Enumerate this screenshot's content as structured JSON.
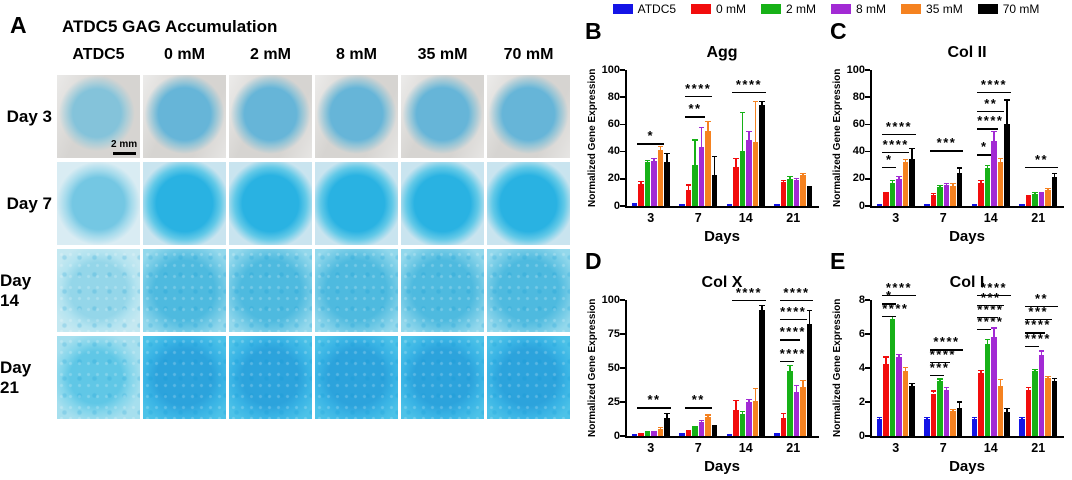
{
  "panel_a": {
    "letter": "A",
    "title": "ATDC5 GAG Accumulation",
    "columns": [
      "ATDC5",
      "0 mM",
      "2 mM",
      "8 mM",
      "35 mM",
      "70 mM"
    ],
    "rows": [
      "Day 3",
      "Day 7",
      "Day 14",
      "Day 21"
    ],
    "scale_bar": "2 mm",
    "stain_color": "#29b2e2"
  },
  "legend": {
    "items": [
      {
        "label": "ATDC5",
        "color": "#1414e6"
      },
      {
        "label": "0 mM",
        "color": "#f20d0d"
      },
      {
        "label": "2 mM",
        "color": "#17b117"
      },
      {
        "label": "8 mM",
        "color": "#a22ad4"
      },
      {
        "label": "35 mM",
        "color": "#f58220"
      },
      {
        "label": "70 mM",
        "color": "#000000"
      }
    ]
  },
  "chart_data": [
    {
      "panel": "B",
      "type": "bar",
      "title": "Agg",
      "categories": [
        "3",
        "7",
        "14",
        "21"
      ],
      "xlabel": "Days",
      "ylabel": "Normalized Gene Expression",
      "ylim": [
        0,
        100
      ],
      "yticks": [
        0,
        20,
        40,
        60,
        80,
        100
      ],
      "series": [
        {
          "name": "ATDC5",
          "color": "#1414e6",
          "values": [
            1.5,
            1,
            1,
            0.8
          ],
          "errors": [
            0.4,
            0.2,
            0.2,
            0.2
          ]
        },
        {
          "name": "0 mM",
          "color": "#f20d0d",
          "values": [
            16,
            11.5,
            29,
            17.5
          ],
          "errors": [
            2,
            4,
            6,
            1
          ]
        },
        {
          "name": "2 mM",
          "color": "#17b117",
          "values": [
            32.5,
            30.5,
            40.5,
            20
          ],
          "errors": [
            1,
            18,
            28,
            1.5
          ]
        },
        {
          "name": "8 mM",
          "color": "#a22ad4",
          "values": [
            33,
            43.5,
            48.5,
            19
          ],
          "errors": [
            2,
            14.5,
            6,
            1
          ]
        },
        {
          "name": "35 mM",
          "color": "#f58220",
          "values": [
            41,
            55,
            47,
            23
          ],
          "errors": [
            3,
            7,
            30,
            1
          ]
        },
        {
          "name": "70 mM",
          "color": "#000000",
          "values": [
            32,
            23,
            74,
            13
          ],
          "errors": [
            6.5,
            13.5,
            3,
            1
          ]
        }
      ],
      "annotations": [
        {
          "group": 0,
          "stars": "*",
          "x1": 1,
          "x2": 4,
          "y": 46
        },
        {
          "group": 1,
          "stars": "**",
          "x1": 1,
          "x2": 3,
          "y": 66
        },
        {
          "group": 1,
          "stars": "****",
          "x1": 1,
          "x2": 4,
          "y": 81
        },
        {
          "group": 2,
          "stars": "****",
          "x1": 1,
          "x2": 5,
          "y": 84
        }
      ]
    },
    {
      "panel": "C",
      "type": "bar",
      "title": "Col II",
      "categories": [
        "3",
        "7",
        "14",
        "21"
      ],
      "xlabel": "Days",
      "ylabel": "Normalized Gene Expression",
      "ylim": [
        0,
        100
      ],
      "yticks": [
        0,
        20,
        40,
        60,
        80,
        100
      ],
      "series": [
        {
          "name": "ATDC5",
          "color": "#1414e6",
          "values": [
            1,
            1,
            1,
            1
          ],
          "errors": [
            0.2,
            0.2,
            0.2,
            0.2
          ]
        },
        {
          "name": "0 mM",
          "color": "#f20d0d",
          "values": [
            8.5,
            8,
            17,
            7
          ],
          "errors": [
            1,
            1,
            1.5,
            1
          ]
        },
        {
          "name": "2 mM",
          "color": "#17b117",
          "values": [
            17,
            14,
            28,
            9
          ],
          "errors": [
            1.5,
            1,
            2,
            1
          ]
        },
        {
          "name": "8 mM",
          "color": "#a22ad4",
          "values": [
            20,
            15.5,
            48,
            8.5
          ],
          "errors": [
            1.5,
            1,
            7,
            1
          ]
        },
        {
          "name": "35 mM",
          "color": "#f58220",
          "values": [
            32,
            15,
            32,
            12
          ],
          "errors": [
            2,
            1.5,
            3,
            1
          ]
        },
        {
          "name": "70 mM",
          "color": "#000000",
          "values": [
            34.5,
            24,
            60,
            21
          ],
          "errors": [
            8,
            4,
            18,
            3
          ]
        }
      ],
      "annotations": [
        {
          "group": 0,
          "stars": "*",
          "x1": 1,
          "x2": 2,
          "y": 29
        },
        {
          "group": 0,
          "stars": "****",
          "x1": 1,
          "x2": 4,
          "y": 40
        },
        {
          "group": 0,
          "stars": "****",
          "x1": 1,
          "x2": 5,
          "y": 53
        },
        {
          "group": 1,
          "stars": "***",
          "x1": 1,
          "x2": 5,
          "y": 41
        },
        {
          "group": 2,
          "stars": "*",
          "x1": 1,
          "x2": 2,
          "y": 38
        },
        {
          "group": 2,
          "stars": "****",
          "x1": 1,
          "x2": 3,
          "y": 57
        },
        {
          "group": 2,
          "stars": "**",
          "x1": 1,
          "x2": 4,
          "y": 70
        },
        {
          "group": 2,
          "stars": "****",
          "x1": 1,
          "x2": 5,
          "y": 84
        },
        {
          "group": 3,
          "stars": "**",
          "x1": 1,
          "x2": 5,
          "y": 29
        }
      ]
    },
    {
      "panel": "D",
      "type": "bar",
      "title": "Col X",
      "categories": [
        "3",
        "7",
        "14",
        "21"
      ],
      "xlabel": "Days",
      "ylabel": "Normalized Gene Expression",
      "ylim": [
        0,
        100
      ],
      "yticks": [
        0,
        25,
        50,
        75,
        100
      ],
      "series": [
        {
          "name": "ATDC5",
          "color": "#1414e6",
          "values": [
            1,
            1.5,
            1,
            1.5
          ],
          "errors": [
            0.2,
            0.3,
            0.2,
            0.3
          ]
        },
        {
          "name": "0 mM",
          "color": "#f20d0d",
          "values": [
            1.5,
            3.5,
            19,
            13.5
          ],
          "errors": [
            0.3,
            0.5,
            7,
            3
          ]
        },
        {
          "name": "2 mM",
          "color": "#17b117",
          "values": [
            2.5,
            6,
            16,
            48
          ],
          "errors": [
            0.4,
            0.6,
            2,
            4
          ]
        },
        {
          "name": "8 mM",
          "color": "#a22ad4",
          "values": [
            3,
            10,
            25,
            32
          ],
          "errors": [
            0.5,
            1.5,
            2,
            5
          ]
        },
        {
          "name": "35 mM",
          "color": "#f58220",
          "values": [
            5,
            14,
            26,
            36
          ],
          "errors": [
            1.5,
            1.5,
            9,
            5
          ]
        },
        {
          "name": "70 mM",
          "color": "#000000",
          "values": [
            13,
            7,
            93,
            82
          ],
          "errors": [
            3.5,
            1,
            3,
            10
          ]
        }
      ],
      "annotations": [
        {
          "group": 0,
          "stars": "**",
          "x1": 1,
          "x2": 5,
          "y": 21
        },
        {
          "group": 1,
          "stars": "**",
          "x1": 1,
          "x2": 4,
          "y": 21
        },
        {
          "group": 2,
          "stars": "****",
          "x1": 1,
          "x2": 5,
          "y": 100
        },
        {
          "group": 3,
          "stars": "****",
          "x1": 1,
          "x2": 2,
          "y": 55
        },
        {
          "group": 3,
          "stars": "****",
          "x1": 1,
          "x2": 3,
          "y": 71
        },
        {
          "group": 3,
          "stars": "****",
          "x1": 1,
          "x2": 4,
          "y": 86
        },
        {
          "group": 3,
          "stars": "****",
          "x1": 1,
          "x2": 5,
          "y": 100
        }
      ]
    },
    {
      "panel": "E",
      "type": "bar",
      "title": "Col I",
      "categories": [
        "3",
        "7",
        "14",
        "21"
      ],
      "xlabel": "Days",
      "ylabel": "Normalized Gene Expression",
      "ylim": [
        0,
        8
      ],
      "yticks": [
        0,
        2,
        4,
        6,
        8
      ],
      "series": [
        {
          "name": "ATDC5",
          "color": "#1414e6",
          "values": [
            1,
            1,
            1,
            1
          ],
          "errors": [
            0.08,
            0.08,
            0.08,
            0.1
          ]
        },
        {
          "name": "0 mM",
          "color": "#f20d0d",
          "values": [
            4.25,
            2.5,
            3.7,
            2.7
          ],
          "errors": [
            0.4,
            0.15,
            0.15,
            0.15
          ]
        },
        {
          "name": "2 mM",
          "color": "#17b117",
          "values": [
            6.9,
            3.25,
            5.4,
            3.8
          ],
          "errors": [
            0.15,
            0.1,
            0.3,
            0.1
          ]
        },
        {
          "name": "8 mM",
          "color": "#a22ad4",
          "values": [
            4.65,
            2.7,
            5.85,
            4.75
          ],
          "errors": [
            0.15,
            0.15,
            0.5,
            0.25
          ]
        },
        {
          "name": "35 mM",
          "color": "#f58220",
          "values": [
            3.85,
            1.45,
            2.95,
            3.4
          ],
          "errors": [
            0.2,
            0.12,
            0.35,
            0.1
          ]
        },
        {
          "name": "70 mM",
          "color": "#000000",
          "values": [
            2.95,
            1.65,
            1.4,
            3.25
          ],
          "errors": [
            0.12,
            0.35,
            0.2,
            0.15
          ]
        }
      ],
      "annotations": [
        {
          "group": 0,
          "stars": "****",
          "x1": 1,
          "x2": 2,
          "y": 7.05
        },
        {
          "group": 0,
          "stars": "*",
          "x1": 1,
          "x2": 2,
          "y": 7.8
        },
        {
          "group": 0,
          "stars": "****",
          "x1": 1,
          "x2": 5,
          "y": 8.3
        },
        {
          "group": 1,
          "stars": "***",
          "x1": 1,
          "x2": 2,
          "y": 3.6
        },
        {
          "group": 1,
          "stars": "****",
          "x1": 1,
          "x2": 3,
          "y": 4.35
        },
        {
          "group": 1,
          "stars": "****",
          "x1": 1,
          "x2": 5,
          "y": 5.1
        },
        {
          "group": 2,
          "stars": "****",
          "x1": 1,
          "x2": 2,
          "y": 6.3
        },
        {
          "group": 2,
          "stars": "****",
          "x1": 1,
          "x2": 3,
          "y": 7.0
        },
        {
          "group": 2,
          "stars": "***",
          "x1": 1,
          "x2": 4,
          "y": 7.7
        },
        {
          "group": 2,
          "stars": "****",
          "x1": 1,
          "x2": 5,
          "y": 8.3
        },
        {
          "group": 3,
          "stars": "****",
          "x1": 1,
          "x2": 2,
          "y": 5.3
        },
        {
          "group": 3,
          "stars": "****",
          "x1": 1,
          "x2": 3,
          "y": 6.1
        },
        {
          "group": 3,
          "stars": "***",
          "x1": 1,
          "x2": 4,
          "y": 6.9
        },
        {
          "group": 3,
          "stars": "**",
          "x1": 1,
          "x2": 5,
          "y": 7.65
        }
      ]
    }
  ]
}
